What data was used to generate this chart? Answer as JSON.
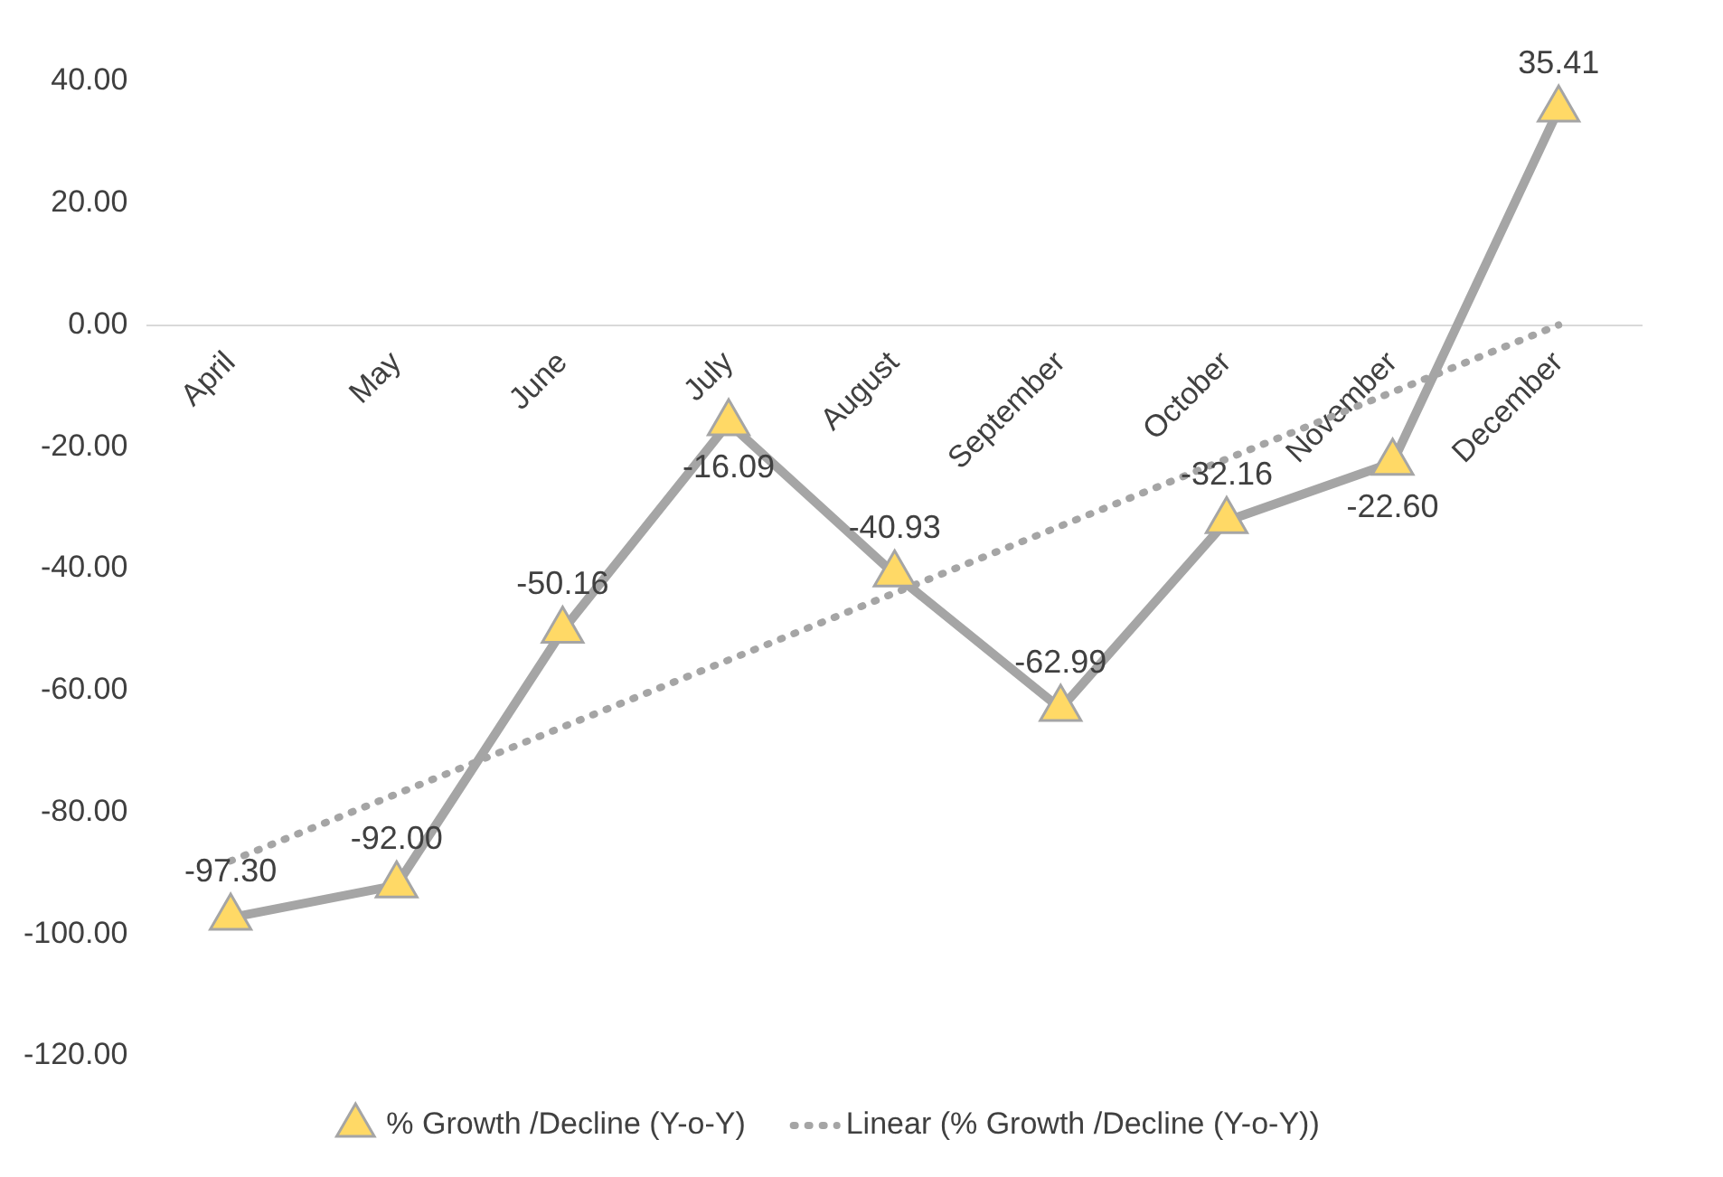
{
  "chart_data": {
    "type": "line",
    "categories": [
      "April",
      "May",
      "June",
      "July",
      "August",
      "September",
      "October",
      "November",
      "December"
    ],
    "series": [
      {
        "name": "% Growth /Decline (Y-o-Y)",
        "color": "#a5a5a5",
        "values": [
          -97.3,
          -92.0,
          -50.16,
          -16.09,
          -40.93,
          -62.99,
          -32.16,
          -22.6,
          35.41
        ],
        "value_labels": [
          "-97.30",
          "-92.00",
          "-50.16",
          "-16.09",
          "-40.93",
          "-62.99",
          "-32.16",
          "-22.60",
          "35.41"
        ],
        "marker": "triangle",
        "line_style": "solid"
      },
      {
        "name": "Linear (% Growth /Decline (Y-o-Y))",
        "color": "#a5a5a5",
        "values": [
          -88,
          -77,
          -66,
          -55,
          -44,
          -33,
          -22,
          -11,
          0
        ],
        "marker": "none",
        "line_style": "dotted"
      }
    ],
    "ylim": [
      -120,
      40
    ],
    "yticks": [
      {
        "value": -120,
        "label": "-120.00"
      },
      {
        "value": -100,
        "label": "-100.00"
      },
      {
        "value": -80,
        "label": "-80.00"
      },
      {
        "value": -60,
        "label": "-60.00"
      },
      {
        "value": -40,
        "label": "-40.00"
      },
      {
        "value": -20,
        "label": "-20.00"
      },
      {
        "value": 0,
        "label": "0.00"
      },
      {
        "value": 20,
        "label": "20.00"
      },
      {
        "value": 40,
        "label": "40.00"
      }
    ],
    "grid": false,
    "legend": "bottom"
  }
}
